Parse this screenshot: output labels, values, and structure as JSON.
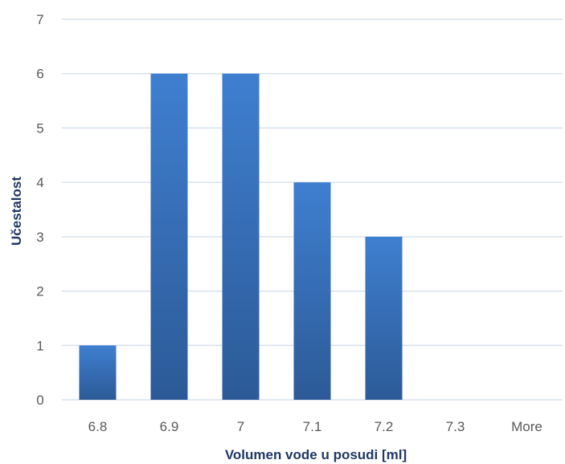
{
  "chart_data": {
    "type": "bar",
    "categories": [
      "6.8",
      "6.9",
      "7",
      "7.1",
      "7.2",
      "7.3",
      "More"
    ],
    "values": [
      1,
      6,
      6,
      4,
      3,
      0,
      0
    ],
    "title": "",
    "xlabel": "Volumen vode u posudi [ml]",
    "ylabel": "Učestalost",
    "ylim": [
      0,
      7
    ],
    "yticks": [
      "0",
      "1",
      "2",
      "3",
      "4",
      "5",
      "6",
      "7"
    ],
    "grid": true,
    "legend": "none",
    "colors": {
      "bar_top": "#3f7fd0",
      "bar_bottom": "#2c5a97",
      "grid": "#d9e2ee",
      "axis_title": "#1f3864",
      "tick": "#595959"
    }
  }
}
